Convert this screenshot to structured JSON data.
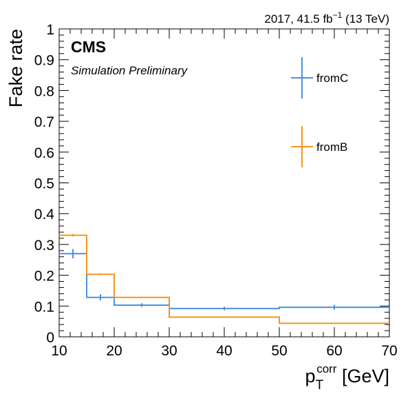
{
  "header": {
    "lumi_prefix": "2017, 41.5 fb",
    "lumi_sup": "−1",
    "lumi_suffix": " (13 TeV)"
  },
  "labels": {
    "cms": "CMS",
    "simulation": "Simulation Preliminary"
  },
  "chart_data": {
    "type": "histogram",
    "xlabel_main": "p",
    "xlabel_sub": "T",
    "xlabel_sup": "corr",
    "xlabel_unit": " [GeV]",
    "ylabel": "Fake rate",
    "xlim": [
      10,
      70
    ],
    "ylim": [
      0,
      1
    ],
    "xticks": [
      10,
      20,
      30,
      40,
      50,
      60,
      70
    ],
    "yticks": [
      0,
      0.1,
      0.2,
      0.3,
      0.4,
      0.5,
      0.6,
      0.7,
      0.8,
      0.9,
      1
    ],
    "ytick_labels": [
      "0",
      "0.1",
      "0.2",
      "0.3",
      "0.4",
      "0.5",
      "0.6",
      "0.7",
      "0.8",
      "0.9",
      "1"
    ],
    "bin_edges": [
      10,
      15,
      20,
      30,
      50,
      70
    ],
    "series": [
      {
        "name": "fromC",
        "color": "#4a90e2",
        "values": [
          0.27,
          0.128,
          0.103,
          0.092,
          0.096
        ],
        "errors": [
          0.015,
          0.01,
          0.006,
          0.006,
          0.008
        ]
      },
      {
        "name": "fromB",
        "color": "#f7941d",
        "values": [
          0.33,
          0.203,
          0.128,
          0.064,
          0.044
        ],
        "errors": [
          0.004,
          0.003,
          0.002,
          0.002,
          0.002
        ]
      }
    ],
    "legend_position": "top-right"
  }
}
